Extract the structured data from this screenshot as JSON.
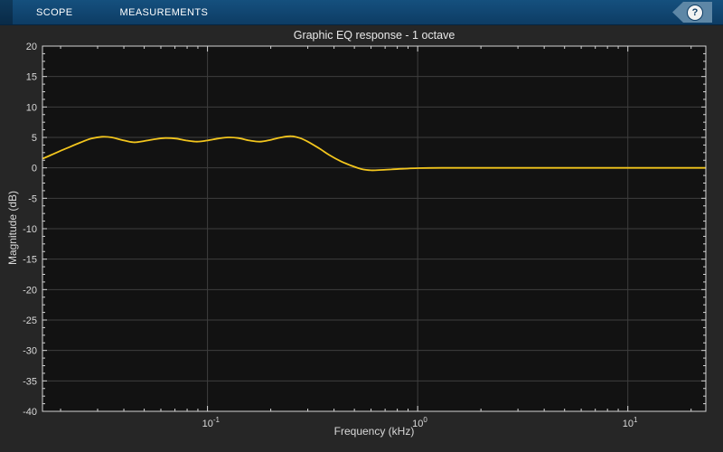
{
  "toolbar": {
    "tabs": [
      {
        "label": "SCOPE"
      },
      {
        "label": "MEASUREMENTS"
      }
    ],
    "help_label": "?"
  },
  "colors": {
    "window_bg": "#262626",
    "toolbar_bg": "#0d3c64",
    "toolbar_hi": "#15507e",
    "tab_text": "#ffffff",
    "help_tag": "#5e87a6",
    "help_circle_bg": "#f2f2f2",
    "help_glyph": "#0d3c64",
    "plot_bg": "#121212",
    "axis": "#d4d4d4",
    "grid": "#3e3e3e",
    "tick_label": "#d9d9d9",
    "title_text": "#e8e8e8",
    "line": "#f2c51d"
  },
  "chart_data": {
    "type": "line",
    "title": "Graphic EQ response - 1 octave",
    "xlabel": "Frequency (kHz)",
    "ylabel": "Magnitude (dB)",
    "x_scale": "log",
    "xlim": [
      0.0164,
      23.5
    ],
    "ylim": [
      -40,
      20
    ],
    "grid": true,
    "legend": "none",
    "y_ticks": [
      20,
      15,
      10,
      5,
      0,
      -5,
      -10,
      -15,
      -20,
      -25,
      -30,
      -35,
      -40
    ],
    "y_minor_step": 1.25,
    "x_major_ticks": [
      {
        "value": 0.1,
        "base": "10",
        "exp": "-1"
      },
      {
        "value": 1,
        "base": "10",
        "exp": "0"
      },
      {
        "value": 10,
        "base": "10",
        "exp": "1"
      }
    ],
    "series": [
      {
        "name": "EQ response",
        "points": [
          [
            0.0164,
            1.5
          ],
          [
            0.018,
            2.1
          ],
          [
            0.02,
            2.8
          ],
          [
            0.022,
            3.4
          ],
          [
            0.025,
            4.2
          ],
          [
            0.028,
            4.8
          ],
          [
            0.0315,
            5.1
          ],
          [
            0.035,
            5.0
          ],
          [
            0.039,
            4.6
          ],
          [
            0.0445,
            4.2
          ],
          [
            0.05,
            4.4
          ],
          [
            0.056,
            4.7
          ],
          [
            0.063,
            4.9
          ],
          [
            0.071,
            4.8
          ],
          [
            0.079,
            4.5
          ],
          [
            0.089,
            4.3
          ],
          [
            0.1,
            4.5
          ],
          [
            0.112,
            4.8
          ],
          [
            0.125,
            5.0
          ],
          [
            0.14,
            4.9
          ],
          [
            0.158,
            4.5
          ],
          [
            0.178,
            4.3
          ],
          [
            0.2,
            4.6
          ],
          [
            0.224,
            5.0
          ],
          [
            0.25,
            5.2
          ],
          [
            0.275,
            4.9
          ],
          [
            0.3,
            4.3
          ],
          [
            0.34,
            3.2
          ],
          [
            0.38,
            2.1
          ],
          [
            0.43,
            1.1
          ],
          [
            0.48,
            0.4
          ],
          [
            0.54,
            -0.2
          ],
          [
            0.6,
            -0.4
          ],
          [
            0.67,
            -0.35
          ],
          [
            0.75,
            -0.25
          ],
          [
            0.85,
            -0.15
          ],
          [
            1.0,
            -0.05
          ],
          [
            1.3,
            0.0
          ],
          [
            2.0,
            0.0
          ],
          [
            4.0,
            0.0
          ],
          [
            8.0,
            0.0
          ],
          [
            16.0,
            0.0
          ],
          [
            23.5,
            0.0
          ]
        ]
      }
    ]
  }
}
